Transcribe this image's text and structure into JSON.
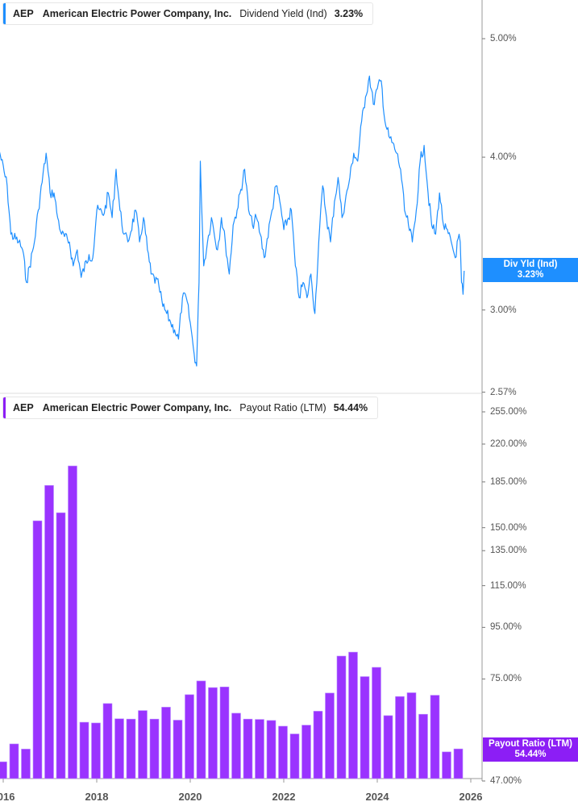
{
  "colors": {
    "yield_line": "#1e8fff",
    "payout_bar": "#9a33ff",
    "payout_tag": "#8c1ef5",
    "yield_tag": "#1e8fff"
  },
  "top_legend": {
    "ticker": "AEP",
    "company": "American Electric Power Company, Inc.",
    "metric": "Dividend Yield (Ind)",
    "value": "3.23%"
  },
  "bottom_legend": {
    "ticker": "AEP",
    "company": "American Electric Power Company, Inc.",
    "metric": "Payout Ratio (LTM)",
    "value": "54.44%"
  },
  "yield_tag": {
    "label": "Div Yld (Ind)",
    "value": "3.23%"
  },
  "payout_tag": {
    "label": "Payout Ratio (LTM)",
    "value": "54.44%"
  },
  "chart_data": [
    {
      "type": "line",
      "title": "Dividend Yield (Ind)",
      "yscale": "log",
      "ylim": [
        2.57,
        5.4
      ],
      "y_ticks": [
        "5.00%",
        "4.00%",
        "3.00%",
        "2.57%"
      ],
      "y_tick_values": [
        5.0,
        4.0,
        3.0,
        2.57
      ],
      "series": [
        {
          "name": "Dividend Yield (Ind)",
          "points": [
            [
              "2015-12-01",
              4.05
            ],
            [
              "2016-02-01",
              3.79
            ],
            [
              "2016-03-01",
              3.46
            ],
            [
              "2016-05-01",
              3.41
            ],
            [
              "2016-06-01",
              3.36
            ],
            [
              "2016-07-01",
              3.16
            ],
            [
              "2016-09-01",
              3.41
            ],
            [
              "2016-10-01",
              3.62
            ],
            [
              "2016-12-01",
              4.03
            ],
            [
              "2017-01-01",
              3.74
            ],
            [
              "2017-02-01",
              3.74
            ],
            [
              "2017-03-01",
              3.57
            ],
            [
              "2017-04-01",
              3.46
            ],
            [
              "2017-06-01",
              3.41
            ],
            [
              "2017-07-01",
              3.26
            ],
            [
              "2017-08-01",
              3.36
            ],
            [
              "2017-09-01",
              3.19
            ],
            [
              "2017-11-01",
              3.33
            ],
            [
              "2017-12-01",
              3.31
            ],
            [
              "2018-01-01",
              3.62
            ],
            [
              "2018-03-01",
              3.6
            ],
            [
              "2018-04-01",
              3.74
            ],
            [
              "2018-05-01",
              3.57
            ],
            [
              "2018-06-01",
              3.91
            ],
            [
              "2018-07-01",
              3.62
            ],
            [
              "2018-08-01",
              3.46
            ],
            [
              "2018-09-01",
              3.41
            ],
            [
              "2018-11-01",
              3.62
            ],
            [
              "2018-12-01",
              3.41
            ],
            [
              "2019-01-01",
              3.57
            ],
            [
              "2019-02-01",
              3.36
            ],
            [
              "2019-03-01",
              3.21
            ],
            [
              "2019-05-01",
              3.14
            ],
            [
              "2019-06-01",
              3.02
            ],
            [
              "2019-07-01",
              2.98
            ],
            [
              "2019-08-01",
              2.93
            ],
            [
              "2019-09-01",
              2.89
            ],
            [
              "2019-10-01",
              2.84
            ],
            [
              "2019-11-01",
              3.07
            ],
            [
              "2019-12-01",
              3.07
            ],
            [
              "2020-01-01",
              2.93
            ],
            [
              "2020-02-01",
              2.76
            ],
            [
              "2020-02-20",
              2.7
            ],
            [
              "2020-03-10",
              3.16
            ],
            [
              "2020-03-20",
              3.97
            ],
            [
              "2020-04-15",
              3.26
            ],
            [
              "2020-05-15",
              3.41
            ],
            [
              "2020-06-15",
              3.57
            ],
            [
              "2020-08-01",
              3.36
            ],
            [
              "2020-09-01",
              3.57
            ],
            [
              "2020-10-01",
              3.41
            ],
            [
              "2020-11-01",
              3.21
            ],
            [
              "2020-12-01",
              3.52
            ],
            [
              "2021-01-01",
              3.62
            ],
            [
              "2021-03-01",
              3.91
            ],
            [
              "2021-04-01",
              3.62
            ],
            [
              "2021-05-01",
              3.52
            ],
            [
              "2021-06-01",
              3.57
            ],
            [
              "2021-07-01",
              3.46
            ],
            [
              "2021-08-01",
              3.31
            ],
            [
              "2021-10-01",
              3.62
            ],
            [
              "2021-11-01",
              3.79
            ],
            [
              "2021-12-01",
              3.68
            ],
            [
              "2022-01-01",
              3.49
            ],
            [
              "2022-03-01",
              3.62
            ],
            [
              "2022-04-01",
              3.26
            ],
            [
              "2022-05-01",
              3.07
            ],
            [
              "2022-06-01",
              3.16
            ],
            [
              "2022-07-01",
              3.07
            ],
            [
              "2022-08-01",
              3.21
            ],
            [
              "2022-09-01",
              2.98
            ],
            [
              "2022-10-01",
              3.41
            ],
            [
              "2022-11-01",
              3.79
            ],
            [
              "2022-12-01",
              3.57
            ],
            [
              "2023-01-01",
              3.41
            ],
            [
              "2023-02-01",
              3.68
            ],
            [
              "2023-03-01",
              3.85
            ],
            [
              "2023-04-01",
              3.57
            ],
            [
              "2023-06-01",
              3.85
            ],
            [
              "2023-07-01",
              4.03
            ],
            [
              "2023-08-01",
              3.97
            ],
            [
              "2023-09-01",
              4.28
            ],
            [
              "2023-10-01",
              4.48
            ],
            [
              "2023-11-01",
              4.66
            ],
            [
              "2023-12-01",
              4.42
            ],
            [
              "2024-01-01",
              4.55
            ],
            [
              "2024-02-01",
              4.62
            ],
            [
              "2024-03-01",
              4.28
            ],
            [
              "2024-04-01",
              4.16
            ],
            [
              "2024-06-01",
              4.03
            ],
            [
              "2024-07-01",
              3.91
            ],
            [
              "2024-08-01",
              3.62
            ],
            [
              "2024-09-01",
              3.52
            ],
            [
              "2024-10-01",
              3.41
            ],
            [
              "2024-11-01",
              3.62
            ],
            [
              "2024-12-01",
              3.97
            ],
            [
              "2025-01-01",
              4.09
            ],
            [
              "2025-02-01",
              3.74
            ],
            [
              "2025-03-01",
              3.52
            ],
            [
              "2025-04-01",
              3.46
            ],
            [
              "2025-05-01",
              3.74
            ],
            [
              "2025-06-01",
              3.52
            ],
            [
              "2025-08-01",
              3.41
            ],
            [
              "2025-09-01",
              3.31
            ],
            [
              "2025-10-01",
              3.46
            ],
            [
              "2025-10-10",
              3.41
            ],
            [
              "2025-10-20",
              3.16
            ],
            [
              "2025-11-01",
              3.09
            ],
            [
              "2025-11-10",
              3.23
            ]
          ]
        }
      ]
    },
    {
      "type": "bar",
      "title": "Payout Ratio (LTM)",
      "yscale": "log",
      "ylim": [
        47,
        255
      ],
      "y_ticks": [
        "255.00%",
        "220.00%",
        "185.00%",
        "150.00%",
        "135.00%",
        "115.00%",
        "95.00%",
        "75.00%",
        "47.00%"
      ],
      "y_tick_values": [
        255,
        220,
        185,
        150,
        135,
        115,
        95,
        75,
        47
      ],
      "x_ticks": [
        "2016",
        "2018",
        "2020",
        "2022",
        "2024",
        "2026"
      ],
      "categories": [
        "2016-Q1",
        "2016-Q2",
        "2016-Q3",
        "2016-Q4",
        "2017-Q1",
        "2017-Q2",
        "2017-Q3",
        "2017-Q4",
        "2018-Q1",
        "2018-Q2",
        "2018-Q3",
        "2018-Q4",
        "2019-Q1",
        "2019-Q2",
        "2019-Q3",
        "2019-Q4",
        "2020-Q1",
        "2020-Q2",
        "2020-Q3",
        "2020-Q4",
        "2021-Q1",
        "2021-Q2",
        "2021-Q3",
        "2021-Q4",
        "2022-Q1",
        "2022-Q2",
        "2022-Q3",
        "2022-Q4",
        "2023-Q1",
        "2023-Q2",
        "2023-Q3",
        "2023-Q4",
        "2024-Q1",
        "2024-Q2",
        "2024-Q3",
        "2024-Q4",
        "2025-Q1",
        "2025-Q2",
        "2025-Q3",
        "2025-Q4"
      ],
      "series": [
        {
          "name": "Payout Ratio (LTM)",
          "values": [
            51.3,
            55.7,
            54.4,
            154.8,
            182.0,
            160.6,
            199.0,
            61.5,
            61.3,
            67.0,
            62.5,
            62.4,
            64.9,
            62.4,
            65.9,
            62.1,
            69.8,
            74.3,
            72.1,
            72.3,
            64.1,
            62.4,
            62.3,
            62.0,
            60.4,
            58.3,
            60.7,
            64.7,
            70.3,
            83.3,
            84.8,
            75.8,
            79.1,
            63.4,
            69.2,
            70.4,
            63.8,
            69.6,
            53.7,
            54.44
          ]
        }
      ]
    }
  ]
}
